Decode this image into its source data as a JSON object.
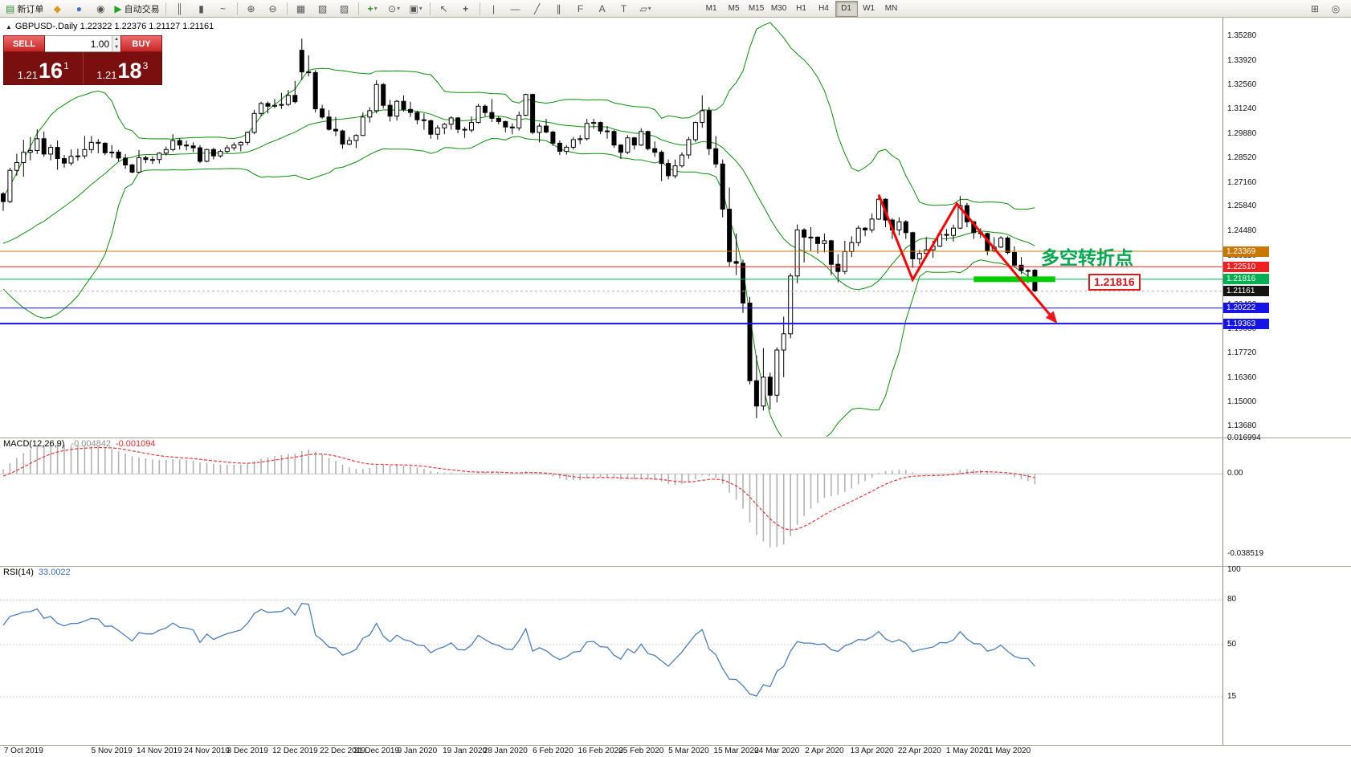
{
  "toolbar": {
    "new_order_label": "新订单",
    "auto_trading_label": "自动交易",
    "buttons": [
      "new-order",
      "market-watch",
      "accounts",
      "metaeditor",
      "auto-trading",
      "sep",
      "bar-chart",
      "candlestick-chart",
      "line-chart",
      "sep",
      "zoom-in",
      "zoom-out",
      "sep",
      "tile-windows",
      "arrange-windows",
      "cascade-windows",
      "sep",
      "indicators",
      "periods",
      "templates",
      "sep",
      "cursor",
      "crosshair",
      "sep",
      "vertical-line",
      "horizontal-line",
      "trendline",
      "equidistant-channel",
      "fibonacci",
      "text",
      "text-label",
      "shapes"
    ],
    "right_buttons": [
      "new-chart-window",
      "search"
    ],
    "timeframes": [
      "M1",
      "M5",
      "M15",
      "M30",
      "H1",
      "H4",
      "D1",
      "W1",
      "MN"
    ],
    "active_timeframe": "D1"
  },
  "chart": {
    "header": "GBPUSD-.Daily 1.22322 1.22376 1.21127 1.21161"
  },
  "trade_panel": {
    "sell_label": "SELL",
    "buy_label": "BUY",
    "volume": "1.00",
    "sell_price": {
      "base": "1.21",
      "pips": "16",
      "point": "1"
    },
    "buy_price": {
      "base": "1.21",
      "pips": "18",
      "point": "3"
    }
  },
  "price_scale": {
    "labels": [
      "1.35280",
      "1.33920",
      "1.32560",
      "1.31240",
      "1.29880",
      "1.28520",
      "1.27160",
      "1.25840",
      "1.24480",
      "1.23120",
      "1.21760",
      "1.20400",
      "1.19080",
      "1.17720",
      "1.16360",
      "1.15000",
      "1.13680"
    ],
    "badges": [
      {
        "text": "1.23369",
        "color": "#C87800"
      },
      {
        "text": "1.22510",
        "color": "#F02020"
      },
      {
        "text": "1.21816",
        "color": "#00B050"
      },
      {
        "text": "1.21161",
        "color": "#141414"
      },
      {
        "text": "1.20222",
        "color": "#1414E6"
      },
      {
        "text": "1.19363",
        "color": "#1414E6"
      }
    ]
  },
  "levels": [
    {
      "value": 1.23369,
      "color": "#C87800",
      "width": 1
    },
    {
      "value": 1.2251,
      "color": "#F02020",
      "width": 1
    },
    {
      "value": 1.21816,
      "color": "#00B050",
      "width": 1
    },
    {
      "value": 1.21161,
      "color": "#b4b4b4",
      "width": 1,
      "dash": "3 3"
    },
    {
      "value": 1.20222,
      "color": "#1414E6",
      "width": 1
    },
    {
      "value": 1.19363,
      "color": "#1414E6",
      "width": 2
    }
  ],
  "annotations": {
    "turning_point_label": {
      "text": "多空转折点",
      "color": "#00A84E"
    },
    "price_flag": {
      "text": "1.21816"
    },
    "support_bar": {
      "from_index": 143,
      "to_index": 155,
      "price": 1.21816,
      "color": "#00CC00"
    },
    "zigzag": {
      "color": "#FF0000",
      "points": [
        {
          "i": 129,
          "p": 1.265
        },
        {
          "i": 134,
          "p": 1.218
        },
        {
          "i": 140.5,
          "p": 1.26
        },
        {
          "i": 155,
          "p": 1.195
        }
      ]
    }
  },
  "macd": {
    "name": "MACD(12,26,9)",
    "main_value": "-0.004842",
    "signal_value": "-0.001094",
    "scale": [
      "0.016994",
      "0.00",
      "-0.038519"
    ]
  },
  "rsi": {
    "name": "RSI(14)",
    "value": "33.0022",
    "scale": [
      "100",
      "80",
      "50",
      "15"
    ],
    "levels": [
      80,
      50,
      15
    ]
  },
  "x_axis": {
    "labels": [
      {
        "t": "7 Oct 2019",
        "i": 3
      },
      {
        "t": "5 Nov 2019",
        "i": 16
      },
      {
        "t": "14 Nov 2019",
        "i": 23
      },
      {
        "t": "24 Nov 2019",
        "i": 30
      },
      {
        "t": "3 Dec 2019",
        "i": 36
      },
      {
        "t": "12 Dec 2019",
        "i": 43
      },
      {
        "t": "22 Dec 2019",
        "i": 50
      },
      {
        "t": "31 Dec 2019",
        "i": 55
      },
      {
        "t": "9 Jan 2020",
        "i": 61
      },
      {
        "t": "19 Jan 2020",
        "i": 68
      },
      {
        "t": "28 Jan 2020",
        "i": 74
      },
      {
        "t": "6 Feb 2020",
        "i": 81
      },
      {
        "t": "16 Feb 2020",
        "i": 88
      },
      {
        "t": "25 Feb 2020",
        "i": 94
      },
      {
        "t": "5 Mar 2020",
        "i": 101
      },
      {
        "t": "15 Mar 2020",
        "i": 108
      },
      {
        "t": "24 Mar 2020",
        "i": 114
      },
      {
        "t": "2 Apr 2020",
        "i": 121
      },
      {
        "t": "13 Apr 2020",
        "i": 128
      },
      {
        "t": "22 Apr 2020",
        "i": 135
      },
      {
        "t": "1 May 2020",
        "i": 142
      },
      {
        "t": "11 May 2020",
        "i": 148
      }
    ]
  },
  "chart_data": {
    "type": "candlestick",
    "symbol": "GBPUSD-",
    "period": "Daily",
    "indicators": [
      "Bollinger Bands(20,2)",
      "MACD(12,26,9)",
      "RSI(14)"
    ],
    "preroll": 25,
    "candles": [
      [
        1.2285,
        1.239,
        1.228,
        1.2375
      ],
      [
        1.2375,
        1.2385,
        1.2325,
        1.235
      ],
      [
        1.235,
        1.2415,
        1.233,
        1.241
      ],
      [
        1.241,
        1.247,
        1.2395,
        1.2455
      ],
      [
        1.2455,
        1.251,
        1.244,
        1.2505
      ],
      [
        1.2505,
        1.2515,
        1.2425,
        1.243
      ],
      [
        1.243,
        1.2505,
        1.2395,
        1.2495
      ],
      [
        1.2495,
        1.2525,
        1.246,
        1.2475
      ],
      [
        1.2475,
        1.2485,
        1.2405,
        1.2425
      ],
      [
        1.2425,
        1.248,
        1.2415,
        1.248
      ],
      [
        1.248,
        1.249,
        1.2415,
        1.243
      ],
      [
        1.243,
        1.25,
        1.242,
        1.249
      ],
      [
        1.249,
        1.2505,
        1.2345,
        1.2355
      ],
      [
        1.2355,
        1.237,
        1.227,
        1.232
      ],
      [
        1.232,
        1.234,
        1.2255,
        1.229
      ],
      [
        1.229,
        1.231,
        1.223,
        1.2295
      ],
      [
        1.2295,
        1.2305,
        1.2205,
        1.229
      ],
      [
        1.229,
        1.2305,
        1.223,
        1.224
      ],
      [
        1.224,
        1.2295,
        1.221,
        1.2285
      ],
      [
        1.2285,
        1.233,
        1.228,
        1.2325
      ],
      [
        1.2325,
        1.233,
        1.226,
        1.2295
      ],
      [
        1.2295,
        1.23,
        1.2195,
        1.221
      ],
      [
        1.221,
        1.2235,
        1.216,
        1.22
      ],
      [
        1.22,
        1.2445,
        1.2195,
        1.244
      ],
      [
        1.244,
        1.271,
        1.2435,
        1.267
      ],
      [
        1.2655,
        1.2665,
        1.256,
        1.2612
      ],
      [
        1.2612,
        1.2799,
        1.2603,
        1.2785
      ],
      [
        1.2785,
        1.2877,
        1.2755,
        1.2828
      ],
      [
        1.2828,
        1.2954,
        1.275,
        1.2885
      ],
      [
        1.2885,
        1.297,
        1.284,
        1.2895
      ],
      [
        1.2895,
        1.3012,
        1.2875,
        1.296
      ],
      [
        1.296,
        1.3,
        1.286,
        1.2875
      ],
      [
        1.2875,
        1.2928,
        1.284,
        1.2912
      ],
      [
        1.2912,
        1.295,
        1.2788,
        1.285
      ],
      [
        1.285,
        1.287,
        1.28,
        1.2825
      ],
      [
        1.2825,
        1.29,
        1.2812,
        1.2862
      ],
      [
        1.2862,
        1.2905,
        1.2838,
        1.2865
      ],
      [
        1.2865,
        1.2975,
        1.285,
        1.29
      ],
      [
        1.29,
        1.2975,
        1.288,
        1.294
      ],
      [
        1.294,
        1.2958,
        1.288,
        1.2935
      ],
      [
        1.2935,
        1.294,
        1.287,
        1.2882
      ],
      [
        1.2882,
        1.2925,
        1.2855,
        1.2886
      ],
      [
        1.2886,
        1.2898,
        1.2835,
        1.2853
      ],
      [
        1.2853,
        1.2875,
        1.2794,
        1.2815
      ],
      [
        1.2815,
        1.282,
        1.2768,
        1.2775
      ],
      [
        1.2775,
        1.2897,
        1.277,
        1.2855
      ],
      [
        1.2855,
        1.2866,
        1.2825,
        1.2845
      ],
      [
        1.2845,
        1.2862,
        1.282,
        1.2845
      ],
      [
        1.2845,
        1.2885,
        1.2823,
        1.288
      ],
      [
        1.288,
        1.2917,
        1.2867,
        1.29
      ],
      [
        1.29,
        1.2985,
        1.289,
        1.295
      ],
      [
        1.295,
        1.2962,
        1.29,
        1.2925
      ],
      [
        1.2925,
        1.295,
        1.2895,
        1.292
      ],
      [
        1.292,
        1.294,
        1.2885,
        1.291
      ],
      [
        1.291,
        1.2925,
        1.2825,
        1.2835
      ],
      [
        1.2835,
        1.2905,
        1.283,
        1.29
      ],
      [
        1.29,
        1.291,
        1.2845,
        1.2865
      ],
      [
        1.2865,
        1.29,
        1.2855,
        1.289
      ],
      [
        1.289,
        1.2925,
        1.288,
        1.291
      ],
      [
        1.291,
        1.294,
        1.2895,
        1.2925
      ],
      [
        1.2925,
        1.2945,
        1.289,
        1.294
      ],
      [
        1.294,
        1.3,
        1.2925,
        1.2995
      ],
      [
        1.2995,
        1.312,
        1.2985,
        1.31
      ],
      [
        1.31,
        1.3165,
        1.3085,
        1.3155
      ],
      [
        1.3155,
        1.3166,
        1.31,
        1.314
      ],
      [
        1.314,
        1.318,
        1.313,
        1.3145
      ],
      [
        1.3145,
        1.3215,
        1.3125,
        1.315
      ],
      [
        1.315,
        1.323,
        1.314,
        1.32
      ],
      [
        1.32,
        1.328,
        1.3155,
        1.3165
      ],
      [
        1.345,
        1.3514,
        1.3285,
        1.333
      ],
      [
        1.333,
        1.3422,
        1.3305,
        1.3326
      ],
      [
        1.3326,
        1.334,
        1.3105,
        1.3125
      ],
      [
        1.3125,
        1.3148,
        1.307,
        1.308
      ],
      [
        1.308,
        1.3118,
        1.3005,
        1.3012
      ],
      [
        1.3012,
        1.308,
        1.2975,
        1.3003
      ],
      [
        1.3003,
        1.301,
        1.2905,
        1.293
      ],
      [
        1.293,
        1.297,
        1.2925,
        1.295
      ],
      [
        1.295,
        1.2985,
        1.2908,
        1.2978
      ],
      [
        1.2978,
        1.3105,
        1.2975,
        1.308
      ],
      [
        1.308,
        1.3135,
        1.305,
        1.3115
      ],
      [
        1.3115,
        1.3284,
        1.31,
        1.326
      ],
      [
        1.326,
        1.3268,
        1.3128,
        1.3145
      ],
      [
        1.3145,
        1.3175,
        1.3055,
        1.3085
      ],
      [
        1.3085,
        1.3175,
        1.306,
        1.3167
      ],
      [
        1.3167,
        1.32,
        1.311,
        1.3122
      ],
      [
        1.3122,
        1.3165,
        1.308,
        1.3105
      ],
      [
        1.3105,
        1.3115,
        1.304,
        1.3065
      ],
      [
        1.3065,
        1.31,
        1.301,
        1.306
      ],
      [
        1.306,
        1.3065,
        1.296,
        1.2985
      ],
      [
        1.2985,
        1.3035,
        1.2955,
        1.302
      ],
      [
        1.302,
        1.3047,
        1.2985,
        1.304
      ],
      [
        1.304,
        1.3085,
        1.301,
        1.3075
      ],
      [
        1.3075,
        1.308,
        1.299,
        1.3012
      ],
      [
        1.3012,
        1.3025,
        1.2965,
        1.3008
      ],
      [
        1.3008,
        1.3083,
        1.2995,
        1.305
      ],
      [
        1.305,
        1.3153,
        1.3045,
        1.314
      ],
      [
        1.314,
        1.315,
        1.3085,
        1.3105
      ],
      [
        1.3105,
        1.318,
        1.3053,
        1.3073
      ],
      [
        1.3073,
        1.3085,
        1.304,
        1.3055
      ],
      [
        1.3055,
        1.306,
        1.2995,
        1.3025
      ],
      [
        1.3025,
        1.3045,
        1.2985,
        1.302
      ],
      [
        1.302,
        1.311,
        1.3005,
        1.309
      ],
      [
        1.309,
        1.321,
        1.3085,
        1.3205
      ],
      [
        1.3205,
        1.321,
        1.2985,
        1.2995
      ],
      [
        1.2995,
        1.3045,
        1.294,
        1.303
      ],
      [
        1.303,
        1.307,
        1.299,
        1.2997
      ],
      [
        1.2997,
        1.3005,
        1.292,
        1.2935
      ],
      [
        1.2935,
        1.295,
        1.287,
        1.289
      ],
      [
        1.289,
        1.2925,
        1.2872,
        1.2913
      ],
      [
        1.2913,
        1.297,
        1.29,
        1.2955
      ],
      [
        1.2955,
        1.298,
        1.293,
        1.296
      ],
      [
        1.296,
        1.307,
        1.295,
        1.3045
      ],
      [
        1.3045,
        1.307,
        1.3015,
        1.305
      ],
      [
        1.305,
        1.3055,
        1.2985,
        1.3003
      ],
      [
        1.3003,
        1.303,
        1.296,
        1.3
      ],
      [
        1.3,
        1.301,
        1.291,
        1.2925
      ],
      [
        1.2925,
        1.293,
        1.2848,
        1.2885
      ],
      [
        1.2885,
        1.298,
        1.2875,
        1.2965
      ],
      [
        1.2965,
        1.297,
        1.29,
        1.2925
      ],
      [
        1.2925,
        1.3018,
        1.292,
        1.3
      ],
      [
        1.3,
        1.3005,
        1.2895,
        1.2905
      ],
      [
        1.2905,
        1.2945,
        1.2858,
        1.2885
      ],
      [
        1.2885,
        1.2895,
        1.2725,
        1.2823
      ],
      [
        1.2823,
        1.2845,
        1.2735,
        1.2755
      ],
      [
        1.2755,
        1.2845,
        1.274,
        1.281
      ],
      [
        1.281,
        1.2885,
        1.28,
        1.287
      ],
      [
        1.287,
        1.297,
        1.285,
        1.2955
      ],
      [
        1.2955,
        1.3055,
        1.294,
        1.305
      ],
      [
        1.305,
        1.32,
        1.302,
        1.3115
      ],
      [
        1.3115,
        1.3135,
        1.287,
        1.2905
      ],
      [
        1.2905,
        1.2975,
        1.28,
        1.282
      ],
      [
        1.282,
        1.2845,
        1.2525,
        1.257
      ],
      [
        1.257,
        1.269,
        1.225,
        1.228
      ],
      [
        1.228,
        1.2435,
        1.2205,
        1.227
      ],
      [
        1.227,
        1.229,
        1.1995,
        1.205
      ],
      [
        1.205,
        1.2085,
        1.16,
        1.162
      ],
      [
        1.162,
        1.176,
        1.1412,
        1.148
      ],
      [
        1.148,
        1.18,
        1.1455,
        1.164
      ],
      [
        1.164,
        1.1665,
        1.146,
        1.154
      ],
      [
        1.154,
        1.1805,
        1.15,
        1.179
      ],
      [
        1.179,
        1.1975,
        1.164,
        1.188
      ],
      [
        1.188,
        1.2215,
        1.1855,
        1.22
      ],
      [
        1.22,
        1.2485,
        1.216,
        1.2455
      ],
      [
        1.2455,
        1.2465,
        1.2275,
        1.2415
      ],
      [
        1.2415,
        1.247,
        1.2335,
        1.2415
      ],
      [
        1.2415,
        1.242,
        1.2325,
        1.238
      ],
      [
        1.238,
        1.2435,
        1.233,
        1.2395
      ],
      [
        1.2395,
        1.24,
        1.2205,
        1.2265
      ],
      [
        1.2265,
        1.232,
        1.2165,
        1.2225
      ],
      [
        1.2225,
        1.2395,
        1.221,
        1.2335
      ],
      [
        1.2335,
        1.242,
        1.2305,
        1.2385
      ],
      [
        1.2385,
        1.248,
        1.2365,
        1.2465
      ],
      [
        1.2465,
        1.247,
        1.242,
        1.2455
      ],
      [
        1.2455,
        1.2545,
        1.244,
        1.2515
      ],
      [
        1.2515,
        1.2647,
        1.251,
        1.2625
      ],
      [
        1.2625,
        1.263,
        1.247,
        1.251
      ],
      [
        1.251,
        1.252,
        1.2405,
        1.2455
      ],
      [
        1.2455,
        1.2525,
        1.2425,
        1.25
      ],
      [
        1.25,
        1.251,
        1.2405,
        1.244
      ],
      [
        1.244,
        1.2445,
        1.2245,
        1.2295
      ],
      [
        1.2295,
        1.2345,
        1.2265,
        1.2325
      ],
      [
        1.2325,
        1.2415,
        1.23,
        1.2345
      ],
      [
        1.2345,
        1.2395,
        1.23,
        1.2365
      ],
      [
        1.2365,
        1.2455,
        1.236,
        1.243
      ],
      [
        1.243,
        1.246,
        1.2395,
        1.2425
      ],
      [
        1.2425,
        1.2485,
        1.239,
        1.2465
      ],
      [
        1.2465,
        1.2643,
        1.246,
        1.259
      ],
      [
        1.259,
        1.2605,
        1.247,
        1.25
      ],
      [
        1.25,
        1.2505,
        1.2405,
        1.244
      ],
      [
        1.244,
        1.2465,
        1.241,
        1.2435
      ],
      [
        1.2435,
        1.244,
        1.2315,
        1.234
      ],
      [
        1.234,
        1.2415,
        1.233,
        1.236
      ],
      [
        1.236,
        1.242,
        1.2355,
        1.241
      ],
      [
        1.241,
        1.242,
        1.232,
        1.233
      ],
      [
        1.233,
        1.2365,
        1.225,
        1.226
      ],
      [
        1.226,
        1.2305,
        1.221,
        1.223
      ],
      [
        1.223,
        1.2238,
        1.2161,
        1.2228
      ],
      [
        1.22322,
        1.22376,
        1.21127,
        1.21161
      ]
    ]
  }
}
